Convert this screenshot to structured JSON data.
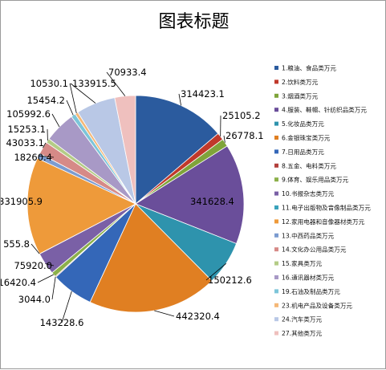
{
  "chart_data": {
    "type": "pie",
    "title": "图表标题",
    "legend_position": "right",
    "categories": [
      "1.粮油、食品类万元",
      "2.饮料类万元",
      "3.烟酒类万元",
      "4.服装、鞋帽、针纺织品类万元",
      "5.化妆品类万元",
      "6.金银珠宝类万元",
      "7.日用品类万元",
      "8.五金、电料类万元",
      "9.体育、娱乐用品类万元",
      "10.书报杂志类万元",
      "11.电子出版物及音像制品类万元",
      "12.家用电器和音像器材类万元",
      "13.中西药品类万元",
      "14.文化办公用品类万元",
      "15.家具类万元",
      "16.通讯器材类万元",
      "19.石油及制品类万元",
      "23.机电产品及设备类万元",
      "24.汽车类万元",
      "27.其他类万元"
    ],
    "values": [
      314423.1,
      25105.2,
      26778.1,
      341628.4,
      150212.6,
      442320.4,
      143228.6,
      3044.0,
      16420.4,
      75920.0,
      555.8,
      331905.9,
      18260.4,
      43033.1,
      15253.1,
      105992.6,
      15454.2,
      10530.1,
      133915.5,
      70933.4
    ],
    "data_labels": [
      "314423.1",
      "25105.2",
      "26778.1",
      "341628.4",
      "150212.6",
      "442320.4",
      "143228.6",
      "3044.0",
      "16420.4",
      "75920.0",
      "555.8",
      "331905.9",
      "18260.4",
      "43033.1",
      "15253.1",
      "105992.6",
      "15454.2",
      "10530.1",
      "133915.5",
      "70933.4"
    ],
    "colors": [
      "#2B5B9E",
      "#C0392B",
      "#7FA43A",
      "#6A4E9A",
      "#2E93AD",
      "#E07F22",
      "#3467B8",
      "#B3403C",
      "#8CB04A",
      "#7A60A6",
      "#3AA2BB",
      "#EE9A3A",
      "#7C9CD0",
      "#D68A87",
      "#B4CC86",
      "#A899C6",
      "#7DC5D9",
      "#F5B877",
      "#B9C8E6",
      "#EFC0BE"
    ]
  }
}
